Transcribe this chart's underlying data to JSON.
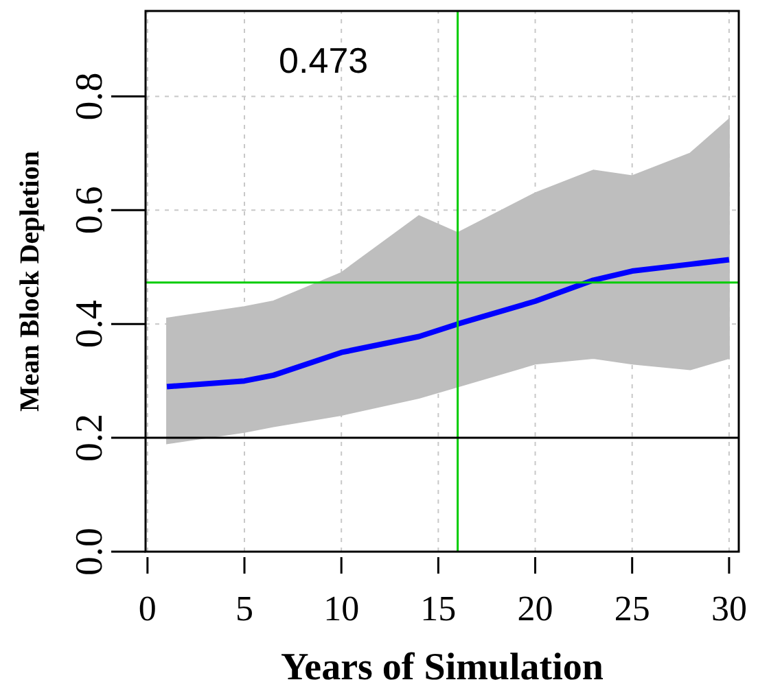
{
  "chart_data": {
    "type": "line",
    "xlabel": "Years of Simulation",
    "ylabel": "Mean Block Depletion",
    "x": [
      1,
      5,
      6.5,
      10,
      14,
      16,
      20,
      23,
      25,
      28,
      30
    ],
    "series": [
      {
        "color": "#0000ff",
        "values": [
          0.29,
          0.3,
          0.31,
          0.35,
          0.378,
          0.4,
          0.44,
          0.477,
          0.493,
          0.505,
          0.513
        ],
        "lower": [
          0.19,
          0.21,
          0.22,
          0.24,
          0.27,
          0.29,
          0.33,
          0.34,
          0.33,
          0.32,
          0.34
        ],
        "upper": [
          0.41,
          0.43,
          0.44,
          0.49,
          0.59,
          0.56,
          0.63,
          0.67,
          0.66,
          0.7,
          0.76
        ]
      }
    ],
    "xlim": [
      -0.1,
      30.5
    ],
    "ylim": [
      0,
      0.95
    ],
    "xticks": [
      0,
      5,
      10,
      15,
      20,
      25,
      30
    ],
    "yticks": [
      {
        "value": 0,
        "label": "0.0"
      },
      0.2,
      0.4,
      0.6,
      0.8
    ],
    "grid": true,
    "marker": "none",
    "line_style": "solid",
    "annotations": [
      "0.473"
    ],
    "ref_lines": [
      {
        "axis": "y",
        "value": 0.473,
        "color": "#00cc00"
      },
      {
        "axis": "x",
        "value": 16,
        "color": "#00cc00"
      },
      {
        "axis": "y",
        "value": 0.2,
        "color": "#000000"
      }
    ]
  }
}
